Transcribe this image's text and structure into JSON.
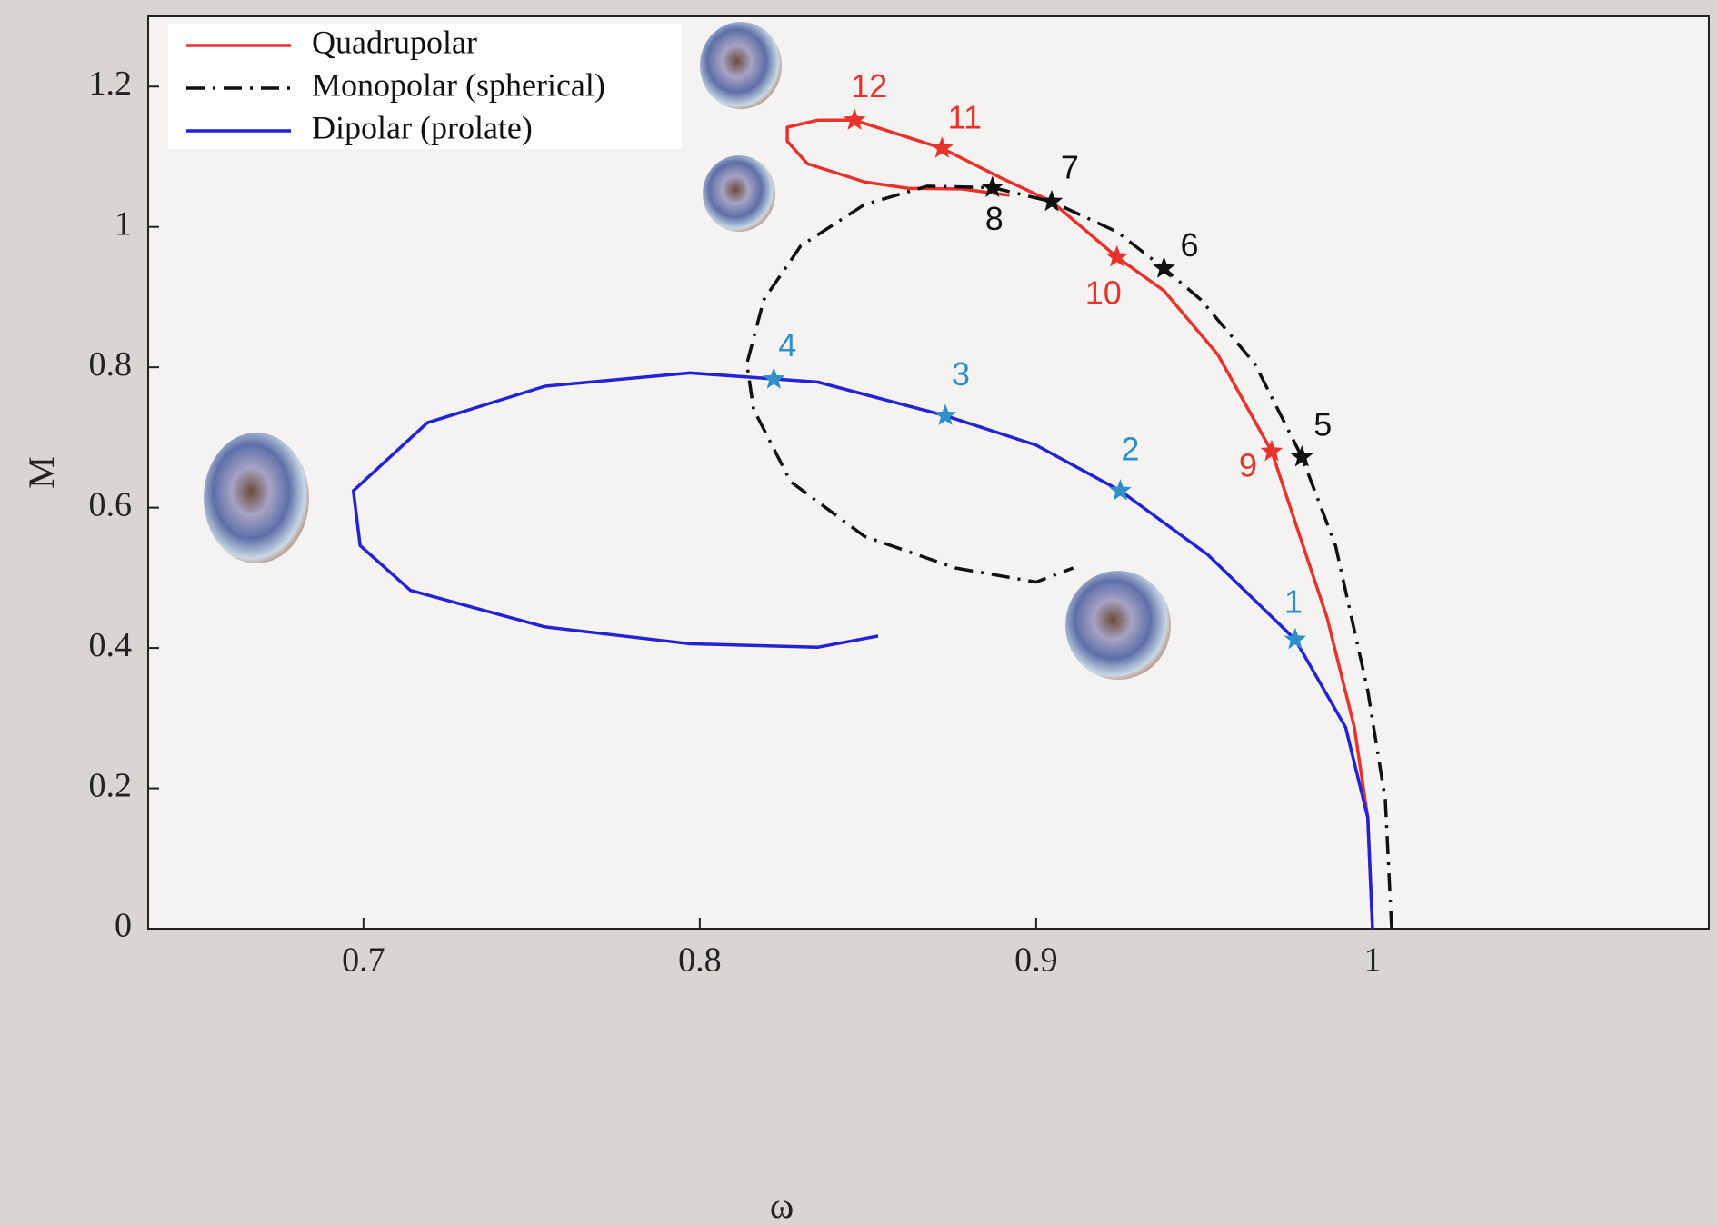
{
  "chart_data": {
    "type": "line",
    "x_label": "ω",
    "y_label": "M",
    "xlim": [
      0.636,
      1.1
    ],
    "ylim": [
      0,
      1.3
    ],
    "xticks": [
      0.7,
      0.8,
      0.9,
      1
    ],
    "yticks": [
      0,
      0.2,
      0.4,
      0.6,
      0.8,
      1,
      1.2
    ],
    "legend": "upper left",
    "series": [
      {
        "name": "Quadrupolar",
        "color": "#e8322b",
        "style": "solid",
        "x": [
          1,
          0.9986,
          0.9946,
          0.9865,
          0.97,
          0.954,
          0.938,
          0.924,
          0.9046,
          0.889,
          0.872,
          0.846,
          0.835,
          0.826,
          0.826,
          0.832,
          0.849,
          0.862,
          0.878,
          0.892
        ],
        "values": [
          0,
          0.158,
          0.287,
          0.443,
          0.68,
          0.818,
          0.909,
          0.957,
          1.036,
          1.071,
          1.112,
          1.152,
          1.152,
          1.142,
          1.122,
          1.09,
          1.064,
          1.055,
          1.054,
          1.045
        ]
      },
      {
        "name": "Monopolar (spherical)",
        "color": "#111111",
        "style": "dashdot",
        "x": [
          1.0057,
          1.0038,
          0.9986,
          0.989,
          0.979,
          0.965,
          0.949,
          0.938,
          0.924,
          0.9046,
          0.887,
          0.8676,
          0.849,
          0.83,
          0.819,
          0.814,
          0.816,
          0.827,
          0.849,
          0.876,
          0.9,
          0.911
        ],
        "values": [
          0,
          0.184,
          0.339,
          0.546,
          0.672,
          0.805,
          0.896,
          0.941,
          0.993,
          1.036,
          1.056,
          1.058,
          1.032,
          0.973,
          0.896,
          0.805,
          0.74,
          0.637,
          0.559,
          0.514,
          0.494,
          0.514
        ]
      },
      {
        "name": "Dipolar (prolate)",
        "color": "#2323d6",
        "style": "solid",
        "x": [
          1,
          0.9986,
          0.992,
          0.977,
          0.951,
          0.925,
          0.9,
          0.873,
          0.835,
          0.797,
          0.754,
          0.719,
          0.697,
          0.699,
          0.714,
          0.754,
          0.797,
          0.835,
          0.853
        ],
        "values": [
          0,
          0.158,
          0.287,
          0.412,
          0.533,
          0.624,
          0.689,
          0.731,
          0.779,
          0.792,
          0.773,
          0.721,
          0.624,
          0.546,
          0.482,
          0.43,
          0.406,
          0.401,
          0.417
        ]
      }
    ],
    "markers": [
      {
        "label": "1",
        "x": 0.977,
        "y": 0.412,
        "color": "#2f8fc9"
      },
      {
        "label": "2",
        "x": 0.925,
        "y": 0.624,
        "color": "#2f8fc9"
      },
      {
        "label": "3",
        "x": 0.873,
        "y": 0.731,
        "color": "#2f8fc9"
      },
      {
        "label": "4",
        "x": 0.822,
        "y": 0.783,
        "color": "#2f8fc9"
      },
      {
        "label": "5",
        "x": 0.979,
        "y": 0.672,
        "color": "#111111"
      },
      {
        "label": "6",
        "x": 0.938,
        "y": 0.941,
        "color": "#111111"
      },
      {
        "label": "7",
        "x": 0.9046,
        "y": 1.036,
        "color": "#111111"
      },
      {
        "label": "8",
        "x": 0.887,
        "y": 1.056,
        "color": "#111111"
      },
      {
        "label": "9",
        "x": 0.97,
        "y": 0.68,
        "color": "#e8322b"
      },
      {
        "label": "10",
        "x": 0.924,
        "y": 0.957,
        "color": "#e8322b"
      },
      {
        "label": "11",
        "x": 0.872,
        "y": 1.112,
        "color": "#e8322b"
      },
      {
        "label": "12",
        "x": 0.846,
        "y": 1.152,
        "color": "#e8322b"
      }
    ]
  }
}
